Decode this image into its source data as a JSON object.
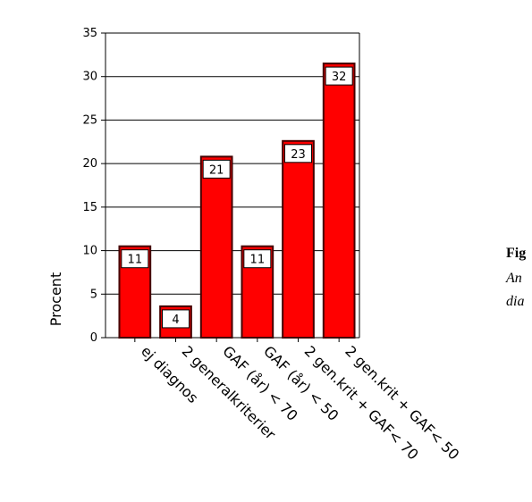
{
  "chart_data": {
    "type": "bar",
    "ylabel": "Procent",
    "categories": [
      "ej diagnos",
      "2 generalkriterier",
      "GAF (år) < 70",
      "GAF (år) < 50",
      "2 gen.krit + GAF< 70",
      "2 gen.krit + GAF< 50"
    ],
    "values": [
      10.5,
      3.6,
      20.8,
      10.5,
      22.6,
      31.5
    ],
    "value_labels": [
      "11",
      "4",
      "21",
      "11",
      "23",
      "32"
    ],
    "color": "#ff0000",
    "ylim": [
      0,
      35
    ],
    "yticks": [
      0,
      5,
      10,
      15,
      20,
      25,
      30,
      35
    ],
    "grid": true,
    "annotations": [
      "Fig",
      "An",
      "dia"
    ]
  }
}
